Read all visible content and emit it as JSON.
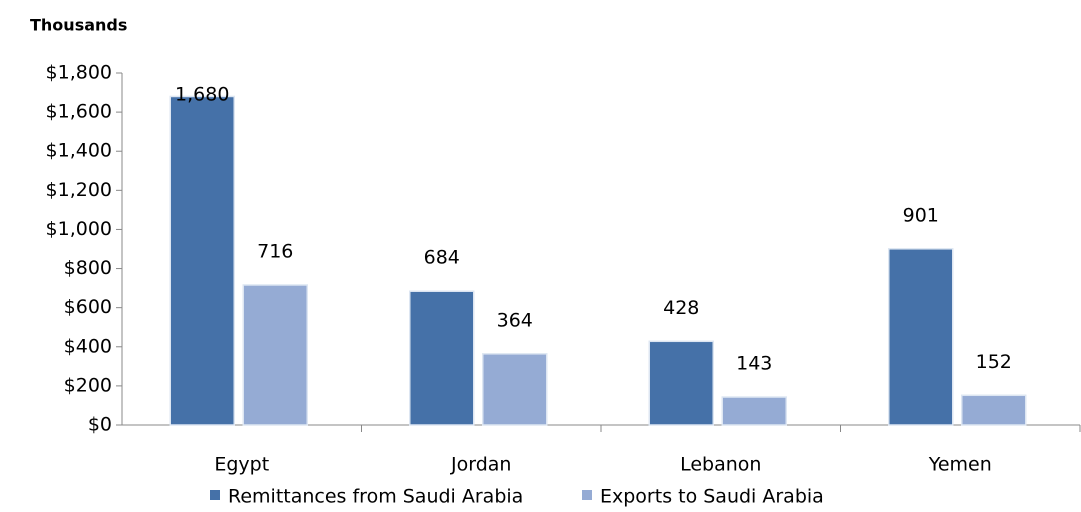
{
  "chart_data": {
    "type": "bar",
    "y_label": "Thousands",
    "categories": [
      "Egypt",
      "Jordan",
      "Lebanon",
      "Yemen"
    ],
    "series": [
      {
        "name": "Remittances from Saudi Arabia",
        "color": "#4571a8",
        "values": [
          1680,
          684,
          428,
          901
        ],
        "value_labels": [
          "1,680",
          "684",
          "428",
          "901"
        ]
      },
      {
        "name": "Exports to Saudi Arabia",
        "color": "#95abd4",
        "values": [
          716,
          364,
          143,
          152
        ]
      }
    ],
    "ylim": [
      0,
      1800
    ],
    "yticks": [
      {
        "value": 0,
        "label": "$0"
      },
      {
        "value": 200,
        "label": "$200"
      },
      {
        "value": 400,
        "label": "$400"
      },
      {
        "value": 600,
        "label": "$600"
      },
      {
        "value": 800,
        "label": "$800"
      },
      {
        "value": 1000,
        "label": "$1,000"
      },
      {
        "value": 1200,
        "label": "$1,200"
      },
      {
        "value": 1400,
        "label": "$1,400"
      },
      {
        "value": 1600,
        "label": "$1,600"
      },
      {
        "value": 1800,
        "label": "$1,800"
      }
    ],
    "grid": false,
    "legend": "bottom"
  }
}
